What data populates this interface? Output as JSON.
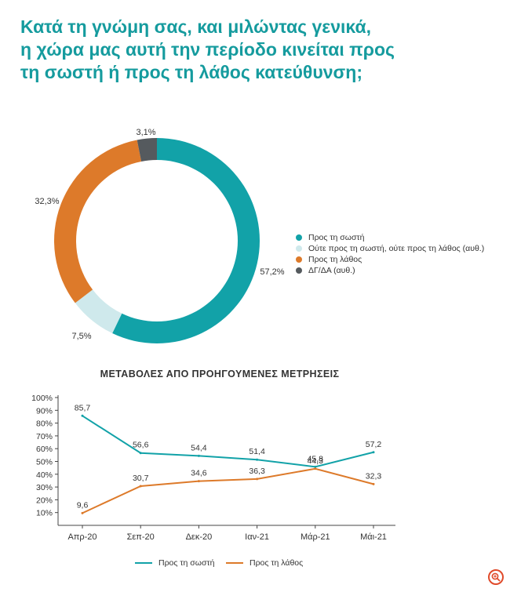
{
  "title_lines": [
    "Κατά τη γνώμη σας, και μιλώντας γενικά,",
    "η χώρα μας αυτή την περίοδο κινείται προς",
    "τη σωστή ή προς τη λάθος κατεύθυνση;"
  ],
  "colors": {
    "accent": "#159b9e",
    "right": "#12a2a8",
    "neither": "#cfe9ec",
    "wrong": "#dd7a2a",
    "dk": "#555a5e"
  },
  "chart_data": [
    {
      "type": "pie",
      "variant": "donut",
      "labels": [
        "Προς τη σωστή",
        "Ούτε προς τη σωστή, ούτε προς τη λάθος (αυθ.)",
        "Προς τη λάθος",
        "ΔΓ/ΔΑ (αυθ.)"
      ],
      "values": [
        57.2,
        7.5,
        32.3,
        3.1
      ],
      "value_labels": [
        "57,2%",
        "7,5%",
        "32,3%",
        "3,1%"
      ],
      "colors": [
        "#12a2a8",
        "#cfe9ec",
        "#dd7a2a",
        "#555a5e"
      ],
      "legend_position": "right"
    },
    {
      "type": "line",
      "title": "ΜΕΤΑΒΟΛΕΣ ΑΠΟ ΠΡΟΗΓΟΥΜΕΝΕΣ ΜΕΤΡΗΣΕΙΣ",
      "categories": [
        "Απρ-20",
        "Σεπ-20",
        "Δεκ-20",
        "Ιαν-21",
        "Μάρ-21",
        "Μάι-21"
      ],
      "yticks": [
        "10%",
        "20%",
        "30%",
        "40%",
        "50%",
        "60%",
        "70%",
        "80%",
        "90%",
        "100%"
      ],
      "ylim": [
        0,
        100
      ],
      "series": [
        {
          "name": "Προς τη σωστή",
          "values": [
            85.7,
            56.6,
            54.4,
            51.4,
            45.8,
            57.2
          ],
          "labels": [
            "85,7",
            "56,6",
            "54,4",
            "51,4",
            "45,8",
            "57,2"
          ],
          "color": "#12a2a8"
        },
        {
          "name": "Προς τη λάθος",
          "values": [
            9.6,
            30.7,
            34.6,
            36.3,
            44.3,
            32.3
          ],
          "labels": [
            "9,6",
            "30,7",
            "34,6",
            "36,3",
            "44,3",
            "32,3"
          ],
          "color": "#dd7a2a"
        }
      ],
      "legend_position": "bottom",
      "grid": false
    }
  ],
  "toolbar": {
    "zoom_icon": "zoom-in-icon"
  }
}
